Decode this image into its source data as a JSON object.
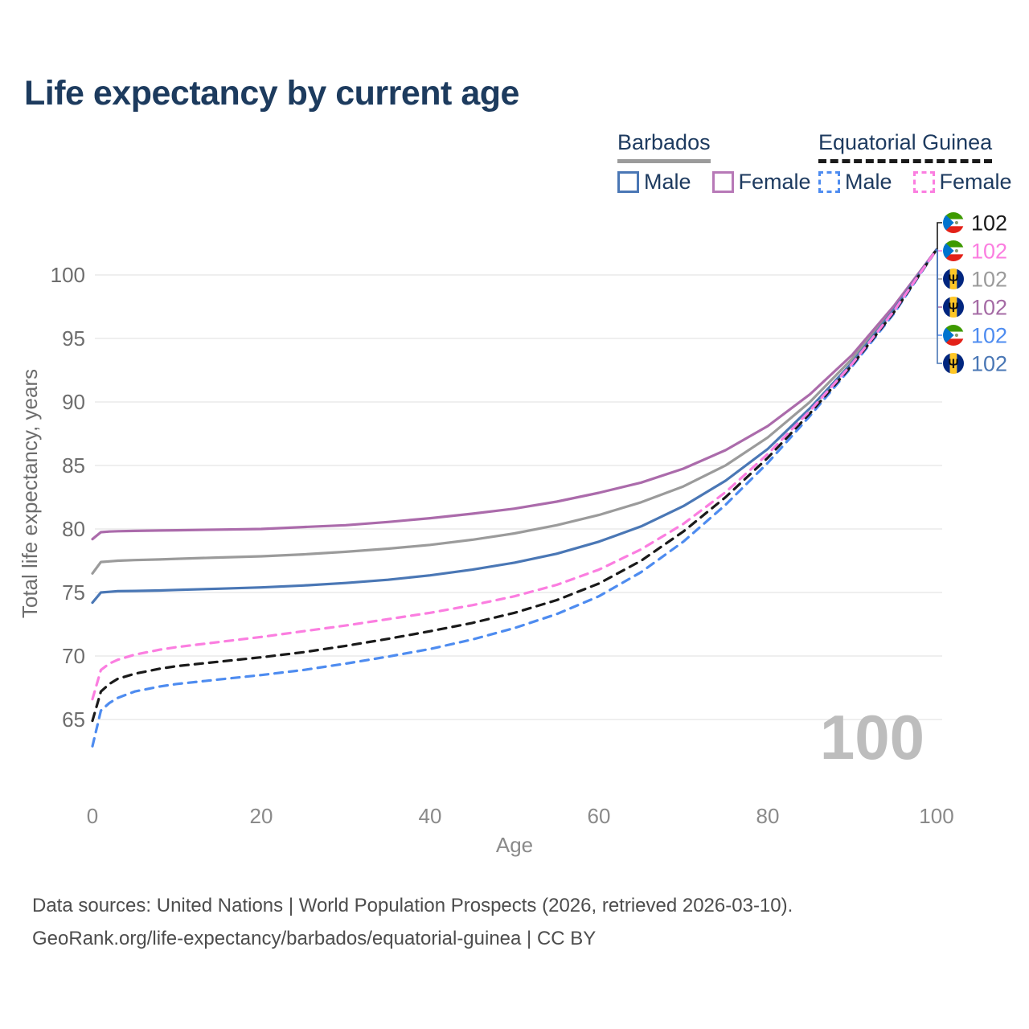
{
  "title": "Life expectancy by current age",
  "legend": {
    "barbados": {
      "name": "Barbados",
      "male": "Male",
      "female": "Female"
    },
    "equatorial_guinea": {
      "name": "Equatorial Guinea",
      "male": "Male",
      "female": "Female"
    }
  },
  "watermark_age": "100",
  "footer": {
    "line1": "Data sources: United Nations | World Population Prospects (2026, retrieved 2026-03-10).",
    "line2": "GeoRank.org/life-expectancy/barbados/equatorial-guinea | CC BY"
  },
  "colors": {
    "title_text": "#1d3b5e",
    "legend_text": "#1d3a5f",
    "axis_text": "#6d6d6d",
    "x_tick_text": "#8a8a8a",
    "gridline": "#eaeaea",
    "watermark": "#bdbdbd",
    "footer_text": "#4d4d4d",
    "barbados_underline": "#9b9b9b",
    "eq_guinea_underline": "#1a1a1a",
    "barbados_male": "#4a77b5",
    "barbados_female": "#ab6bab",
    "barbados_all": "#9b9b9b",
    "eq_guinea_male": "#4e8cf0",
    "eq_guinea_female": "#fb7ee0",
    "eq_guinea_all": "#1a1a1a"
  },
  "chart_data": {
    "type": "line",
    "title": "Life expectancy by current age",
    "xlabel": "Age",
    "ylabel": "Total life expectancy, years",
    "xlim": [
      0,
      100
    ],
    "ylim": [
      62,
      103
    ],
    "xticks": [
      0,
      20,
      40,
      60,
      80,
      100
    ],
    "yticks": [
      65,
      70,
      75,
      80,
      85,
      90,
      95,
      100
    ],
    "grid": "horizontal-only",
    "legend_position": "top-right",
    "x_ages": [
      0,
      1,
      2,
      3,
      5,
      8,
      10,
      15,
      20,
      25,
      30,
      35,
      40,
      45,
      50,
      55,
      60,
      65,
      70,
      75,
      80,
      85,
      90,
      95,
      100
    ],
    "series": [
      {
        "id": "bb_all",
        "name": "Barbados — Both sexes",
        "country": "Barbados",
        "sex": "all",
        "style": "solid",
        "color": "#9b9b9b",
        "values": [
          76.5,
          77.4,
          77.45,
          77.5,
          77.55,
          77.6,
          77.65,
          77.75,
          77.85,
          78.0,
          78.2,
          78.45,
          78.75,
          79.15,
          79.65,
          80.3,
          81.1,
          82.1,
          83.35,
          85.0,
          87.2,
          90.0,
          93.4,
          97.5,
          102
        ]
      },
      {
        "id": "bb_female",
        "name": "Barbados — Female",
        "country": "Barbados",
        "sex": "female",
        "style": "solid",
        "color": "#ab6bab",
        "values": [
          79.2,
          79.75,
          79.8,
          79.82,
          79.85,
          79.88,
          79.9,
          79.95,
          80.0,
          80.15,
          80.3,
          80.55,
          80.85,
          81.2,
          81.6,
          82.15,
          82.85,
          83.65,
          84.75,
          86.2,
          88.1,
          90.6,
          93.7,
          97.6,
          102
        ]
      },
      {
        "id": "bb_male",
        "name": "Barbados — Male",
        "country": "Barbados",
        "sex": "male",
        "style": "solid",
        "color": "#4a77b5",
        "values": [
          74.2,
          75.0,
          75.05,
          75.1,
          75.12,
          75.16,
          75.2,
          75.3,
          75.4,
          75.55,
          75.75,
          76.0,
          76.35,
          76.8,
          77.35,
          78.05,
          79.0,
          80.2,
          81.8,
          83.8,
          86.3,
          89.5,
          93.1,
          97.3,
          102
        ]
      },
      {
        "id": "eg_male",
        "name": "Equatorial Guinea — Male",
        "country": "Equatorial Guinea",
        "sex": "male",
        "style": "dashed",
        "color": "#4e8cf0",
        "values": [
          62.9,
          65.7,
          66.3,
          66.7,
          67.2,
          67.6,
          67.8,
          68.15,
          68.5,
          68.9,
          69.4,
          69.95,
          70.55,
          71.3,
          72.2,
          73.3,
          74.7,
          76.6,
          79.0,
          81.9,
          85.2,
          88.9,
          92.8,
          97.0,
          102
        ]
      },
      {
        "id": "eg_all",
        "name": "Equatorial Guinea — Both sexes",
        "country": "Equatorial Guinea",
        "sex": "all",
        "style": "dashed",
        "color": "#1a1a1a",
        "values": [
          64.9,
          67.2,
          67.8,
          68.2,
          68.6,
          69.0,
          69.2,
          69.55,
          69.9,
          70.3,
          70.8,
          71.35,
          71.95,
          72.6,
          73.4,
          74.4,
          75.7,
          77.5,
          79.8,
          82.5,
          85.6,
          89.1,
          92.9,
          97.1,
          102
        ]
      },
      {
        "id": "eg_female",
        "name": "Equatorial Guinea — Female",
        "country": "Equatorial Guinea",
        "sex": "female",
        "style": "dashed",
        "color": "#fb7ee0",
        "values": [
          66.6,
          68.9,
          69.4,
          69.7,
          70.1,
          70.5,
          70.7,
          71.1,
          71.5,
          71.95,
          72.4,
          72.9,
          73.4,
          74.0,
          74.7,
          75.6,
          76.8,
          78.4,
          80.4,
          82.9,
          85.9,
          89.3,
          93.0,
          97.2,
          102
        ]
      }
    ],
    "end_labels": [
      {
        "series": "eg_all",
        "flag": "equatorial-guinea",
        "text": "102",
        "color": "#1a1a1a"
      },
      {
        "series": "eg_female",
        "flag": "equatorial-guinea",
        "text": "102",
        "color": "#fb7ee0"
      },
      {
        "series": "bb_all",
        "flag": "barbados",
        "text": "102",
        "color": "#9b9b9b"
      },
      {
        "series": "bb_female",
        "flag": "barbados",
        "text": "102",
        "color": "#a56ba5"
      },
      {
        "series": "eg_male",
        "flag": "equatorial-guinea",
        "text": "102",
        "color": "#4e8cf0"
      },
      {
        "series": "bb_male",
        "flag": "barbados",
        "text": "102",
        "color": "#4a77b5"
      }
    ]
  }
}
